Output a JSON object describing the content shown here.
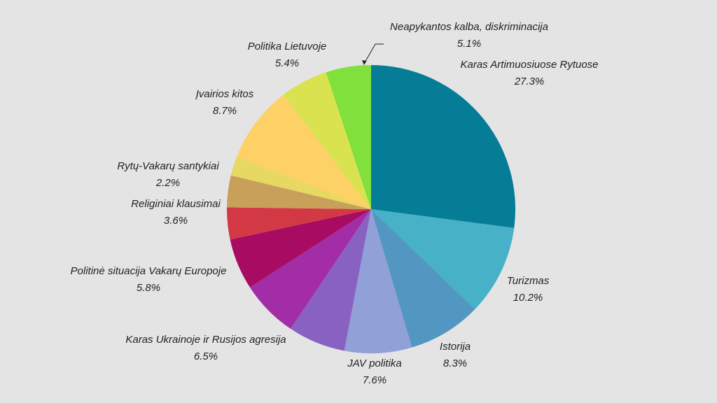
{
  "chart_data": {
    "type": "pie",
    "title": "",
    "slices": [
      {
        "label": "Karas Artimuosiuose Rytuose",
        "value": 27.3,
        "value_label": "27.3%",
        "color": "#057d96"
      },
      {
        "label": "Turizmas",
        "value": 10.2,
        "value_label": "10.2%",
        "color": "#47b1c8"
      },
      {
        "label": "Istorija",
        "value": 8.3,
        "value_label": "8.3%",
        "color": "#5297c2"
      },
      {
        "label": "JAV politika",
        "value": 7.6,
        "value_label": "7.6%",
        "color": "#91a0d6"
      },
      {
        "label": "Karas Ukrainoje ir Rusijos agresija",
        "value": 6.5,
        "value_label": "6.5%",
        "color": "#8961c2"
      },
      {
        "label": "",
        "value": 6.5,
        "value_label": "",
        "color": "#a22da6"
      },
      {
        "label": "Politinė situacija Vakarų Europoje",
        "value": 5.8,
        "value_label": "5.8%",
        "color": "#a70c62"
      },
      {
        "label": "",
        "value": 3.6,
        "value_label": "",
        "color": "#d33845"
      },
      {
        "label": "Religiniai klausimai",
        "value": 3.6,
        "value_label": "3.6%",
        "color": "#c9a05a"
      },
      {
        "label": "Rytų-Vakarų santykiai",
        "value": 2.2,
        "value_label": "2.2%",
        "color": "#e7d862"
      },
      {
        "label": "Įvairios kitos",
        "value": 8.7,
        "value_label": "8.7%",
        "color": "#fdd166"
      },
      {
        "label": "Politika Lietuvoje",
        "value": 5.4,
        "value_label": "5.4%",
        "color": "#d9e24f"
      },
      {
        "label": "Neapykantos kalba, diskriminacija",
        "value": 5.1,
        "value_label": "5.1%",
        "color": "#81e03c"
      }
    ]
  },
  "colors": {
    "background": "#e4e4e4",
    "text": "#222222",
    "leader_line": "#222222"
  }
}
